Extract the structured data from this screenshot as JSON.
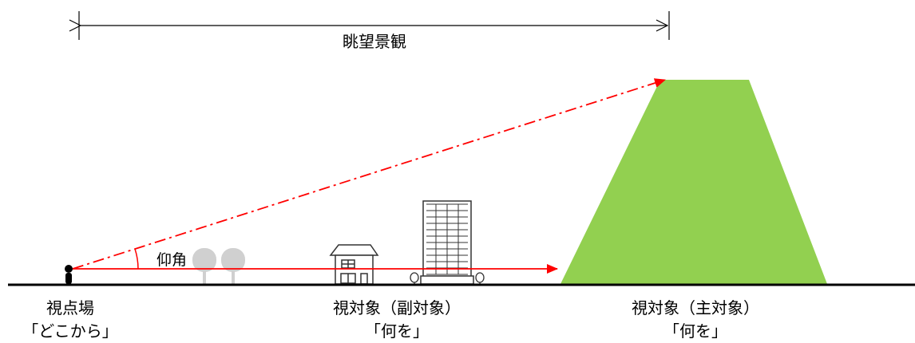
{
  "diagram": {
    "range_label": "眺望景観",
    "angle_label": "仰角",
    "viewpoint": {
      "title": "視点場",
      "subtitle": "「どこから」"
    },
    "sub_object": {
      "title": "視対象（副対象）",
      "subtitle": "「何を」"
    },
    "main_object": {
      "title": "視対象（主対象）",
      "subtitle": "「何を」"
    }
  },
  "colors": {
    "mountain": "#92d050",
    "sight_line": "#ff0000",
    "ground": "#000000",
    "tree": "#d0d0d0",
    "building_stroke": "#333333"
  }
}
